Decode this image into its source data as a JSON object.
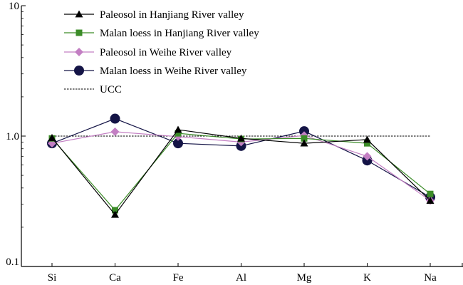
{
  "chart_data": {
    "type": "line",
    "title": "",
    "xlabel": "",
    "ylabel": "",
    "yscale": "log",
    "ylim": [
      0.1,
      10
    ],
    "yticks": [
      "0.1",
      "1.0",
      "10"
    ],
    "categories": [
      "Si",
      "Ca",
      "Fe",
      "Al",
      "Mg",
      "K",
      "Na"
    ],
    "legend_position": "top-left",
    "grid": false,
    "series": [
      {
        "name": "Paleosol in Hanjiang River valley",
        "color": "#000000",
        "marker": "triangle",
        "values": [
          0.97,
          0.25,
          1.12,
          0.96,
          0.88,
          0.94,
          0.32
        ]
      },
      {
        "name": "Malan loess in Hanjiang River valley",
        "color": "#3c8c28",
        "marker": "square",
        "values": [
          0.96,
          0.27,
          1.05,
          0.95,
          0.96,
          0.88,
          0.36
        ]
      },
      {
        "name": "Paleosol in Weihe River valley",
        "color": "#c37fc3",
        "marker": "diamond",
        "values": [
          0.88,
          1.08,
          0.99,
          0.9,
          1.01,
          0.7,
          0.32
        ]
      },
      {
        "name": "Malan loess in Weihe River valley",
        "color": "#141446",
        "marker": "circle",
        "values": [
          0.88,
          1.36,
          0.88,
          0.84,
          1.09,
          0.65,
          0.34
        ]
      }
    ],
    "reference": {
      "name": "UCC",
      "value": 1.0,
      "style": "dashed",
      "color": "#000000"
    }
  }
}
